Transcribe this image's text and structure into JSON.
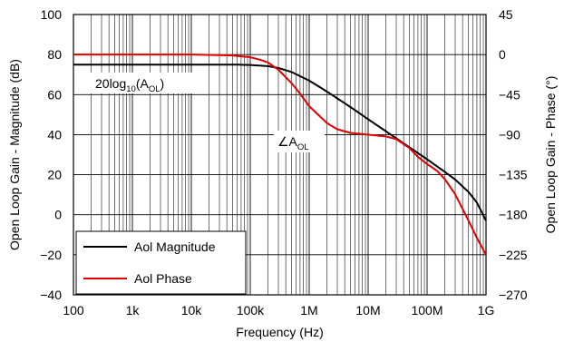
{
  "chart_data": {
    "type": "line",
    "xlabel": "Frequency (Hz)",
    "ylabel_left": "Open Loop Gain - Magnitude (dB)",
    "ylabel_right": "Open Loop Gain - Phase (°)",
    "x_scale": "log",
    "xlim": [
      100,
      1000000000
    ],
    "ylim_left": [
      -40,
      100
    ],
    "ylim_right": [
      -270,
      45
    ],
    "x_ticks": [
      {
        "value": 100,
        "label": "100"
      },
      {
        "value": 1000,
        "label": "1k"
      },
      {
        "value": 10000,
        "label": "10k"
      },
      {
        "value": 100000,
        "label": "100k"
      },
      {
        "value": 1000000,
        "label": "1M"
      },
      {
        "value": 10000000,
        "label": "10M"
      },
      {
        "value": 100000000,
        "label": "100M"
      },
      {
        "value": 1000000000,
        "label": "1G"
      }
    ],
    "y_ticks_left": [
      {
        "value": 100,
        "label": "100"
      },
      {
        "value": 80,
        "label": "80"
      },
      {
        "value": 60,
        "label": "60"
      },
      {
        "value": 40,
        "label": "40"
      },
      {
        "value": 20,
        "label": "20"
      },
      {
        "value": 0,
        "label": "0"
      },
      {
        "value": -20,
        "label": "−20"
      },
      {
        "value": -40,
        "label": "−40"
      }
    ],
    "y_ticks_right": [
      {
        "value": 45,
        "label": "45"
      },
      {
        "value": 0,
        "label": "0"
      },
      {
        "value": -45,
        "label": "−45"
      },
      {
        "value": -90,
        "label": "−90"
      },
      {
        "value": -135,
        "label": "−135"
      },
      {
        "value": -180,
        "label": "−180"
      },
      {
        "value": -225,
        "label": "−225"
      },
      {
        "value": -270,
        "label": "−270"
      }
    ],
    "grid": true,
    "legend_position": "bottom-left",
    "series": [
      {
        "name": "Aol Magnitude",
        "color": "#000000",
        "axis": "left",
        "x": [
          100,
          1000,
          10000,
          50000,
          100000,
          200000,
          300000,
          500000,
          1000000,
          2000000,
          5000000,
          10000000,
          20000000,
          50000000,
          100000000,
          200000000,
          300000000,
          500000000,
          700000000,
          1000000000
        ],
        "y": [
          75,
          75,
          75,
          75,
          74.8,
          74.2,
          73.3,
          71.3,
          67,
          61.5,
          53.8,
          47.7,
          41.7,
          33.7,
          27.7,
          21.4,
          17.6,
          11.5,
          6.1,
          -3
        ]
      },
      {
        "name": "Aol Phase",
        "color": "#e00000",
        "axis": "right",
        "x": [
          100,
          1000,
          10000,
          50000,
          100000,
          150000,
          200000,
          300000,
          500000,
          700000,
          1000000,
          2000000,
          3000000,
          5000000,
          10000000,
          20000000,
          30000000,
          50000000,
          70000000,
          100000000,
          150000000,
          200000000,
          300000000,
          500000000,
          700000000,
          1000000000
        ],
        "y": [
          0,
          0,
          0,
          -1,
          -3,
          -6,
          -9,
          -17,
          -32,
          -44,
          -58,
          -77,
          -84,
          -88,
          -90,
          -92,
          -95,
          -105,
          -115,
          -123,
          -131,
          -140,
          -157,
          -186,
          -206,
          -225
        ]
      }
    ],
    "annotations": {
      "magnitude_base": "20log",
      "magnitude_sub": "10",
      "magnitude_arg_open": "(A",
      "magnitude_arg_sub": "OL",
      "magnitude_arg_close": ")",
      "phase_symbol": "∠A",
      "phase_sub": "OL"
    }
  }
}
